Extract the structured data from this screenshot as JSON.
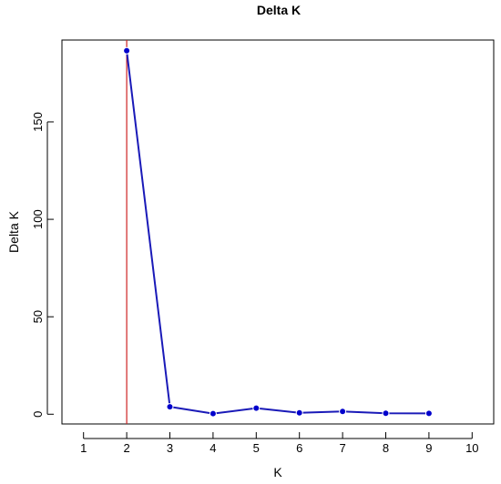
{
  "chart_data": {
    "type": "line",
    "title": "Delta K",
    "xlabel": "K",
    "ylabel": "Delta K",
    "xlim": [
      0.5,
      10.5
    ],
    "ylim": [
      -5,
      192
    ],
    "x_ticks": [
      "1",
      "2",
      "3",
      "4",
      "5",
      "6",
      "7",
      "8",
      "9",
      "10"
    ],
    "y_ticks": [
      "0",
      "50",
      "100",
      "150"
    ],
    "series": [
      {
        "x": [
          2,
          3,
          4,
          5,
          6,
          7,
          8,
          9
        ],
        "values": [
          186.5,
          3.8,
          0.3,
          3.1,
          0.7,
          1.4,
          0.5,
          0.4
        ]
      }
    ],
    "reference_line": {
      "orientation": "vertical",
      "x": 2,
      "color": "#cc2222"
    },
    "grid": false,
    "colors": {
      "line": "#1a1ab8",
      "point": "#0000cc",
      "frame": "#000000"
    }
  }
}
